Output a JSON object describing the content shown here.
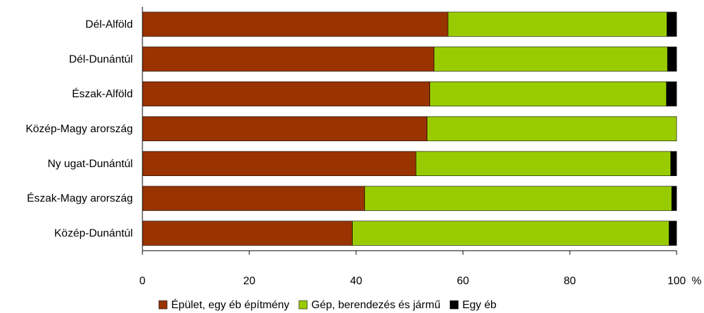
{
  "chart_data": {
    "type": "bar",
    "orientation": "horizontal",
    "stacked": true,
    "categories": [
      "Dél-Alföld",
      "Dél-Dunántúl",
      "Észak-Alföld",
      "Közép-Magy arország",
      "Ny ugat-Dunántúl",
      "Észak-Magy arország",
      "Közép-Dunántúl"
    ],
    "series": [
      {
        "name": "Épület, egy éb építmény",
        "color": "#993300",
        "values": [
          57.2,
          54.6,
          53.8,
          53.3,
          51.2,
          41.6,
          39.3
        ]
      },
      {
        "name": "Gép, berendezés és jármű",
        "color": "#99cc00",
        "values": [
          41.0,
          43.7,
          44.3,
          46.7,
          47.7,
          57.5,
          59.3
        ]
      },
      {
        "name": "Egy éb",
        "color": "#000000",
        "values": [
          1.8,
          1.7,
          1.9,
          0.0,
          1.1,
          0.9,
          1.4
        ]
      }
    ],
    "xlim": [
      0,
      100
    ],
    "xticks": [
      "0",
      "20",
      "40",
      "60",
      "80",
      "100"
    ],
    "unit": "%",
    "grid": false,
    "legend_position": "bottom"
  }
}
